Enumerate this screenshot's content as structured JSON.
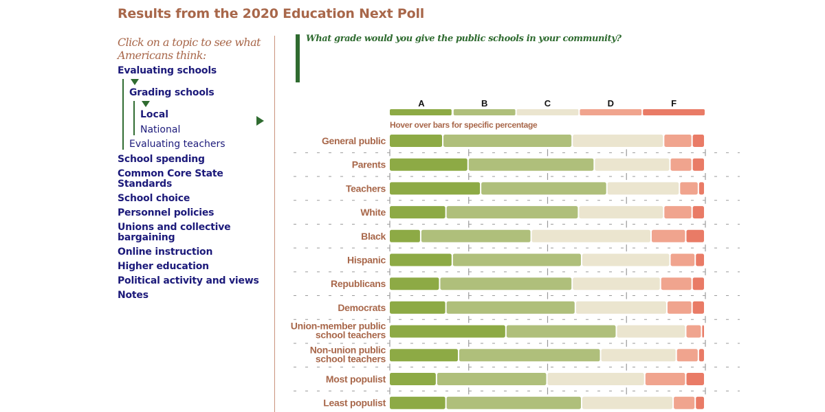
{
  "page": {
    "title": "Results from the 2020 Education Next Poll"
  },
  "sidebar": {
    "prompt": "Click on a topic to see what Americans think:",
    "items": [
      {
        "label": "Evaluating schools",
        "expanded": true,
        "children": [
          {
            "label": "Grading schools",
            "expanded": true,
            "children": [
              {
                "label": "Local",
                "selected": true
              },
              {
                "label": "National",
                "selected": false
              }
            ]
          },
          {
            "label": "Evaluating teachers"
          }
        ]
      },
      {
        "label": "School spending"
      },
      {
        "label": "Common Core State Standards"
      },
      {
        "label": "School choice"
      },
      {
        "label": "Personnel policies"
      },
      {
        "label": "Unions and collective bargaining"
      },
      {
        "label": "Online instruction"
      },
      {
        "label": "Higher education"
      },
      {
        "label": "Political activity and views"
      },
      {
        "label": "Notes"
      }
    ]
  },
  "question": "What grade would you give the public schools in your community?",
  "hint": "Hover over bars for specific percentage",
  "colors": {
    "A": "#8daa45",
    "B": "#afbf7b",
    "C": "#ebe5cf",
    "D": "#f0a48e",
    "F": "#e97b66",
    "title": "#a8674a",
    "nav": "#1c1a7a",
    "accent_green": "#2f6b30"
  },
  "chart_data": {
    "type": "bar",
    "orientation": "horizontal-stacked",
    "title": "What grade would you give the public schools in your community?",
    "xlabel": "",
    "ylabel": "",
    "xlim": [
      0,
      100
    ],
    "units": "percent",
    "legend": {
      "position": "top",
      "entries": [
        "A",
        "B",
        "C",
        "D",
        "F"
      ]
    },
    "grid": true,
    "categories": [
      "General public",
      "Parents",
      "Teachers",
      "White",
      "Black",
      "Hispanic",
      "Republicans",
      "Democrats",
      "Union-member public school teachers",
      "Non-union public school teachers",
      "Most populist",
      "Least populist"
    ],
    "series": [
      {
        "name": "A",
        "values": [
          17,
          25,
          29,
          18,
          10,
          20,
          16,
          18,
          37,
          22,
          15,
          18
        ]
      },
      {
        "name": "B",
        "values": [
          41,
          40,
          40,
          42,
          35,
          41,
          42,
          41,
          35,
          45,
          35,
          43
        ]
      },
      {
        "name": "C",
        "values": [
          29,
          24,
          23,
          27,
          38,
          28,
          28,
          29,
          22,
          24,
          31,
          29
        ]
      },
      {
        "name": "D",
        "values": [
          9,
          7,
          6,
          9,
          11,
          8,
          10,
          8,
          5,
          7,
          13,
          7
        ]
      },
      {
        "name": "F",
        "values": [
          4,
          4,
          2,
          4,
          6,
          3,
          4,
          4,
          1,
          2,
          6,
          3
        ]
      }
    ]
  }
}
